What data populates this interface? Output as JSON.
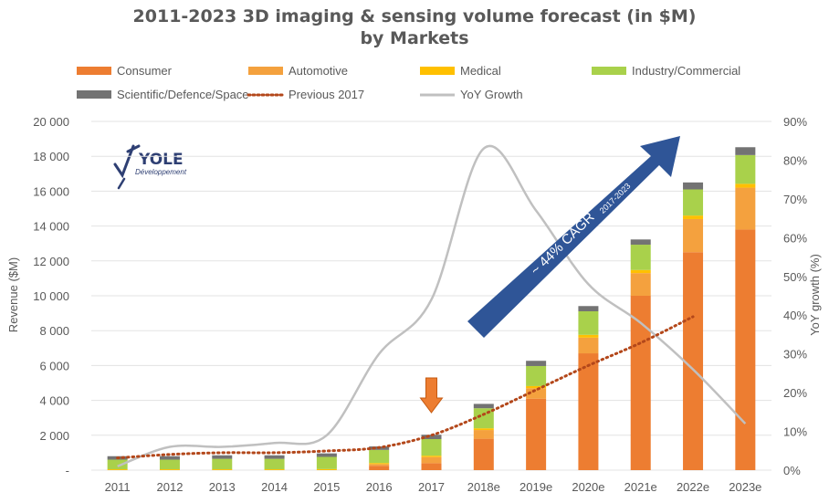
{
  "chart_data": {
    "type": "bar",
    "title_line1": "2011-2023 3D imaging & sensing volume forecast (in $M)",
    "title_line2": "by Markets",
    "categories": [
      "2011",
      "2012",
      "2013",
      "2014",
      "2015",
      "2016",
      "2017",
      "2018e",
      "2019e",
      "2020e",
      "2021e",
      "2022e",
      "2023e"
    ],
    "series": [
      {
        "name": "Consumer",
        "color": "#ed7d31",
        "values": [
          0,
          0,
          0,
          0,
          0,
          250,
          400,
          1800,
          4100,
          6700,
          10000,
          12500,
          13800
        ]
      },
      {
        "name": "Automotive",
        "color": "#f4a13e",
        "values": [
          0,
          0,
          0,
          0,
          0,
          100,
          350,
          500,
          600,
          900,
          1300,
          1900,
          2400
        ]
      },
      {
        "name": "Medical",
        "color": "#ffc000",
        "values": [
          50,
          50,
          50,
          50,
          60,
          60,
          80,
          100,
          120,
          160,
          180,
          200,
          220
        ]
      },
      {
        "name": "Industry/Commercial",
        "color": "#a9d14b",
        "values": [
          550,
          550,
          600,
          600,
          700,
          750,
          950,
          1150,
          1150,
          1350,
          1450,
          1500,
          1650
        ]
      },
      {
        "name": "Scientific/Defence/Space",
        "color": "#737373",
        "values": [
          200,
          200,
          200,
          200,
          200,
          200,
          250,
          250,
          300,
          300,
          300,
          400,
          450
        ]
      }
    ],
    "previous_2017": {
      "name": "Previous 2017",
      "color": "#b3471a",
      "values": [
        700,
        900,
        1000,
        1000,
        1100,
        1300,
        2000,
        3200,
        4600,
        6000,
        7300,
        8800,
        null
      ]
    },
    "yoy_growth": {
      "name": "YoY Growth",
      "color": "#c0c0c0",
      "values": [
        1,
        6,
        6,
        7,
        9,
        30,
        44,
        83,
        67,
        48,
        38,
        26,
        12
      ]
    },
    "ylim": [
      0,
      20000
    ],
    "y_ticks": [
      "-",
      "2 000",
      "4 000",
      "6 000",
      "8 000",
      "10 000",
      "12 000",
      "14 000",
      "16 000",
      "18 000",
      "20 000"
    ],
    "y2lim": [
      0,
      90
    ],
    "y2_ticks": [
      "0%",
      "10%",
      "20%",
      "30%",
      "40%",
      "50%",
      "60%",
      "70%",
      "80%",
      "90%"
    ],
    "ylabel": "Revenue ($M)",
    "y2label": "YoY growth (%)",
    "cagr_label": "~ 44% CAGR",
    "cagr_sub": "2017-2023",
    "logo_text": "YOLE",
    "logo_sub": "Développement",
    "legend_position": "top",
    "highlight_category": "2017"
  }
}
